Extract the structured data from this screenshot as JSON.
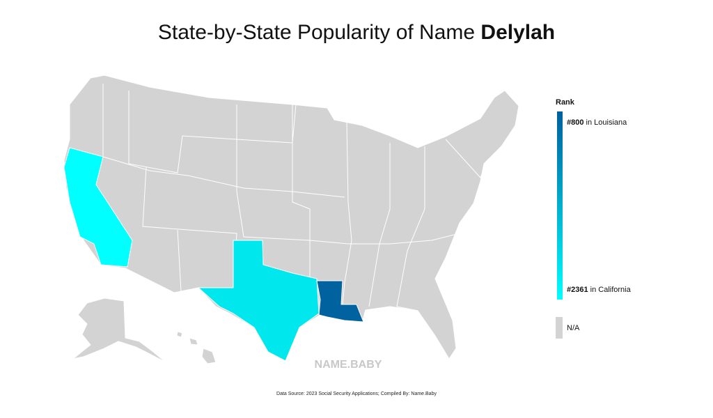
{
  "title": {
    "prefix": "State-by-State Popularity of Name",
    "name": "Delylah"
  },
  "legend": {
    "title": "Rank",
    "top": {
      "rank": "#800",
      "place": "in Louisiana",
      "color": "#00609e"
    },
    "bottom": {
      "rank": "#2361",
      "place": "in California",
      "color": "#00ffff"
    },
    "na": {
      "label": "N/A",
      "color": "#d3d3d3"
    }
  },
  "map": {
    "base_color": "#d3d3d3",
    "fills": {
      "california": "#00ffff",
      "texas": "#00e8ee",
      "louisiana": "#0063a0"
    }
  },
  "watermark": "NAME.BABY",
  "source": "Data Source: 2023 Social Security Applications; Compiled By: Name.Baby"
}
